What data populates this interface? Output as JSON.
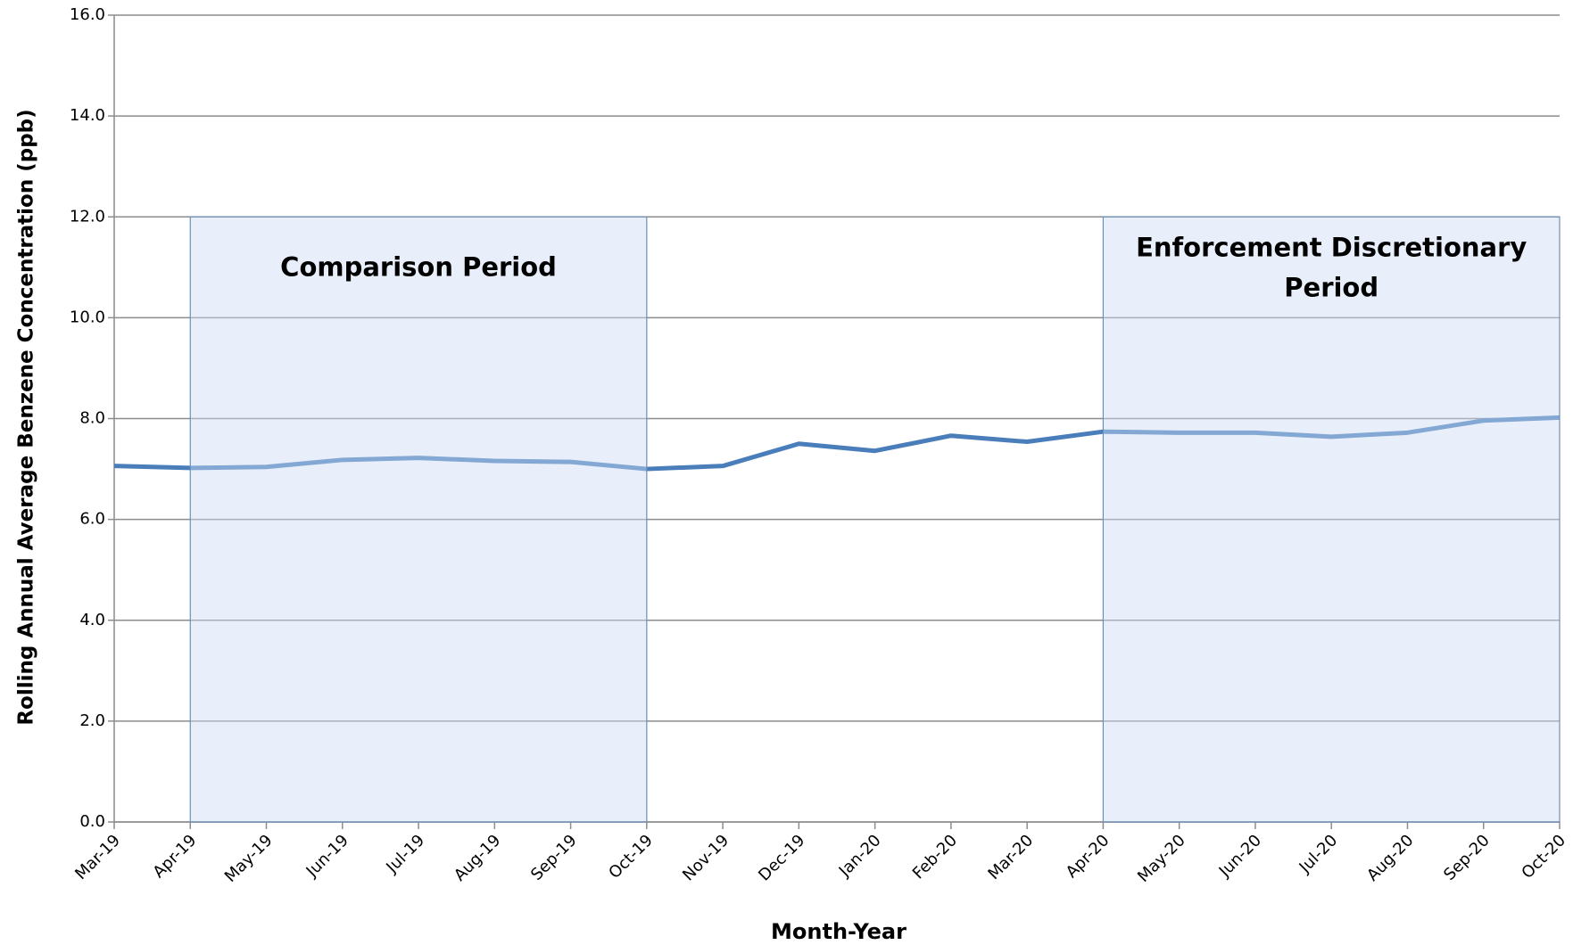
{
  "chart_data": {
    "type": "line",
    "x_label": "Month-Year",
    "y_label": "Rolling Annual Average Benzene Concentration (ppb)",
    "categories": [
      "Mar-19",
      "Apr-19",
      "May-19",
      "Jun-19",
      "Jul-19",
      "Aug-19",
      "Sep-19",
      "Oct-19",
      "Nov-19",
      "Dec-19",
      "Jan-20",
      "Feb-20",
      "Mar-20",
      "Apr-20",
      "May-20",
      "Jun-20",
      "Jul-20",
      "Aug-20",
      "Sep-20",
      "Oct-20"
    ],
    "values": [
      7.06,
      7.02,
      7.04,
      7.18,
      7.22,
      7.16,
      7.14,
      7.0,
      7.06,
      7.5,
      7.36,
      7.66,
      7.54,
      7.74,
      7.72,
      7.72,
      7.64,
      7.72,
      7.96,
      8.02
    ],
    "color": "#4a7ebb",
    "ylim": [
      0,
      16
    ],
    "yticks": [
      {
        "value": 0,
        "label": "0.0"
      },
      {
        "value": 2,
        "label": "2.0"
      },
      {
        "value": 4,
        "label": "4.0"
      },
      {
        "value": 6,
        "label": "6.0"
      },
      {
        "value": 8,
        "label": "8.0"
      },
      {
        "value": 10,
        "label": "10.0"
      },
      {
        "value": 12,
        "label": "12.0"
      },
      {
        "value": 14,
        "label": "14.0"
      },
      {
        "value": 16,
        "label": "16.0"
      }
    ],
    "grid": true,
    "shaded_regions": [
      {
        "label": [
          "Comparison  Period"
        ],
        "start": "Apr-19",
        "end": "Oct-19",
        "top": 12
      },
      {
        "label": [
          "Enforcement Discretionary",
          "Period"
        ],
        "start": "Apr-20",
        "end": "Oct-20",
        "top": 12
      }
    ]
  }
}
